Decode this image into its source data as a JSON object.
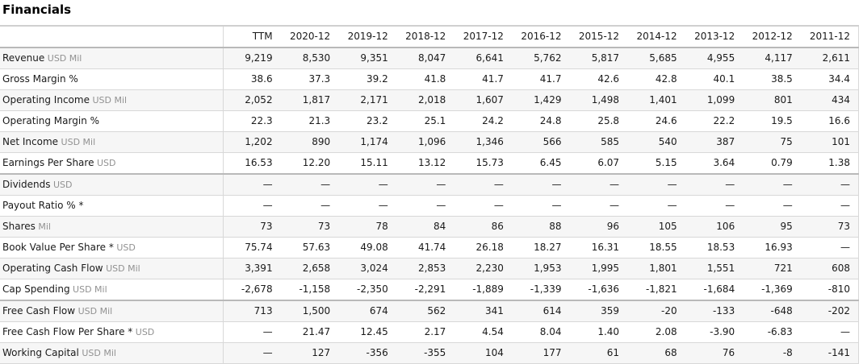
{
  "page": {
    "title": "Financials"
  },
  "colors": {
    "row_stripe": "#f6f6f6",
    "row_separator": "#d8d8d8",
    "section_separator": "#b9b9b9",
    "top_rule": "#d0d0d0",
    "text": "#1a1a1a",
    "unit_text": "#919191"
  },
  "table": {
    "columns": [
      "TTM",
      "2020-12",
      "2019-12",
      "2018-12",
      "2017-12",
      "2016-12",
      "2015-12",
      "2014-12",
      "2013-12",
      "2012-12",
      "2011-12"
    ],
    "rows": [
      {
        "label": "Revenue",
        "unit": "USD Mil",
        "values": [
          "9,219",
          "8,530",
          "9,351",
          "8,047",
          "6,641",
          "5,762",
          "5,817",
          "5,685",
          "4,955",
          "4,117",
          "2,611"
        ]
      },
      {
        "label": "Gross Margin %",
        "unit": "",
        "values": [
          "38.6",
          "37.3",
          "39.2",
          "41.8",
          "41.7",
          "41.7",
          "42.6",
          "42.8",
          "40.1",
          "38.5",
          "34.4"
        ]
      },
      {
        "label": "Operating Income",
        "unit": "USD Mil",
        "values": [
          "2,052",
          "1,817",
          "2,171",
          "2,018",
          "1,607",
          "1,429",
          "1,498",
          "1,401",
          "1,099",
          "801",
          "434"
        ]
      },
      {
        "label": "Operating Margin %",
        "unit": "",
        "values": [
          "22.3",
          "21.3",
          "23.2",
          "25.1",
          "24.2",
          "24.8",
          "25.8",
          "24.6",
          "22.2",
          "19.5",
          "16.6"
        ]
      },
      {
        "label": "Net Income",
        "unit": "USD Mil",
        "values": [
          "1,202",
          "890",
          "1,174",
          "1,096",
          "1,346",
          "566",
          "585",
          "540",
          "387",
          "75",
          "101"
        ]
      },
      {
        "label": "Earnings Per Share",
        "unit": "USD",
        "values": [
          "16.53",
          "12.20",
          "15.11",
          "13.12",
          "15.73",
          "6.45",
          "6.07",
          "5.15",
          "3.64",
          "0.79",
          "1.38"
        ]
      },
      {
        "label": "Dividends",
        "unit": "USD",
        "section_start": true,
        "values": [
          "—",
          "—",
          "—",
          "—",
          "—",
          "—",
          "—",
          "—",
          "—",
          "—",
          "—"
        ]
      },
      {
        "label": "Payout Ratio % *",
        "unit": "",
        "values": [
          "—",
          "—",
          "—",
          "—",
          "—",
          "—",
          "—",
          "—",
          "—",
          "—",
          "—"
        ]
      },
      {
        "label": "Shares",
        "unit": "Mil",
        "values": [
          "73",
          "73",
          "78",
          "84",
          "86",
          "88",
          "96",
          "105",
          "106",
          "95",
          "73"
        ]
      },
      {
        "label": "Book Value Per Share *",
        "unit": "USD",
        "values": [
          "75.74",
          "57.63",
          "49.08",
          "41.74",
          "26.18",
          "18.27",
          "16.31",
          "18.55",
          "18.53",
          "16.93",
          "—"
        ]
      },
      {
        "label": "Operating Cash Flow",
        "unit": "USD Mil",
        "values": [
          "3,391",
          "2,658",
          "3,024",
          "2,853",
          "2,230",
          "1,953",
          "1,995",
          "1,801",
          "1,551",
          "721",
          "608"
        ]
      },
      {
        "label": "Cap Spending",
        "unit": "USD Mil",
        "values": [
          "-2,678",
          "-1,158",
          "-2,350",
          "-2,291",
          "-1,889",
          "-1,339",
          "-1,636",
          "-1,821",
          "-1,684",
          "-1,369",
          "-810"
        ]
      },
      {
        "label": "Free Cash Flow",
        "unit": "USD Mil",
        "section_start": true,
        "values": [
          "713",
          "1,500",
          "674",
          "562",
          "341",
          "614",
          "359",
          "-20",
          "-133",
          "-648",
          "-202"
        ]
      },
      {
        "label": "Free Cash Flow Per Share *",
        "unit": "USD",
        "values": [
          "—",
          "21.47",
          "12.45",
          "2.17",
          "4.54",
          "8.04",
          "1.40",
          "2.08",
          "-3.90",
          "-6.83",
          "—"
        ]
      },
      {
        "label": "Working Capital",
        "unit": "USD Mil",
        "values": [
          "—",
          "127",
          "-356",
          "-355",
          "104",
          "177",
          "61",
          "68",
          "76",
          "-8",
          "-141"
        ]
      }
    ]
  }
}
